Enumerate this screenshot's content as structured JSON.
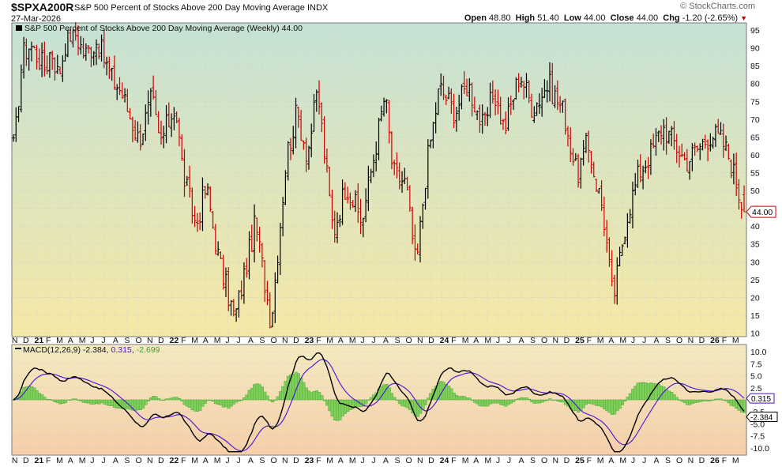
{
  "header": {
    "symbol": "$SPXA200R",
    "name": "S&P 500 Percent of Stocks Above 200 Day Moving Average",
    "exchange": "INDX",
    "date": "27-Mar-2026",
    "watermark": "© StockCharts.com",
    "open_label": "Open",
    "open": "48.80",
    "high_label": "High",
    "high": "51.40",
    "low_label": "Low",
    "low": "44.00",
    "close_label": "Close",
    "close": "44.00",
    "chg_label": "Chg",
    "chg": "-1.20 (-2.65%)",
    "chg_arrow": "▼"
  },
  "price_panel": {
    "legend": "S&P 500 Percent of Stocks Above 200 Day Moving Average (Weekly) 44.00",
    "last_value_tag": "44.00"
  },
  "macd_panel": {
    "legend_prefix": "MACD(12,26,9)",
    "macd_value": "-2.384",
    "signal_value": "0.315",
    "hist_value": "-2.699",
    "macd_tag": "-2.384",
    "signal_tag": "0.315"
  },
  "x_axis_labels": [
    "N",
    "D",
    "21",
    "F",
    "M",
    "A",
    "M",
    "J",
    "J",
    "A",
    "S",
    "O",
    "N",
    "D",
    "22",
    "F",
    "M",
    "A",
    "M",
    "J",
    "J",
    "A",
    "S",
    "O",
    "N",
    "D",
    "23",
    "F",
    "M",
    "A",
    "M",
    "J",
    "J",
    "A",
    "S",
    "O",
    "N",
    "D",
    "24",
    "F",
    "M",
    "A",
    "M",
    "J",
    "J",
    "A",
    "S",
    "O",
    "N",
    "D",
    "25",
    "F",
    "M",
    "A",
    "M",
    "J",
    "J",
    "A",
    "S",
    "O",
    "N",
    "D",
    "26",
    "F",
    "M"
  ],
  "colors": {
    "up_bar": "#000000",
    "down_bar": "#cc0000",
    "macd_line": "#000000",
    "signal_line": "#4b0fd6",
    "histogram": "#3f9f2f",
    "histogram_fill": "#7fcf5a",
    "price_bg_top": "#c5e2d5",
    "price_bg_bottom": "#f6e8a6",
    "macd_bg_top": "#f3eac0",
    "macd_bg_bottom": "#f5cfa9"
  },
  "chart_data": [
    {
      "type": "ohlc",
      "title": "S&P 500 Percent of Stocks Above 200 Day Moving Average (Weekly)",
      "ylim": [
        9,
        97
      ],
      "yticks": [
        10,
        15,
        20,
        25,
        30,
        35,
        40,
        45,
        50,
        55,
        60,
        65,
        70,
        75,
        80,
        85,
        90,
        95
      ],
      "xlim": [
        "2020-11",
        "2026-03"
      ],
      "anchors": [
        [
          "2020-11-02",
          62
        ],
        [
          "2020-11-09",
          72
        ],
        [
          "2020-11-23",
          88
        ],
        [
          "2020-12-14",
          91
        ],
        [
          "2021-01-25",
          84
        ],
        [
          "2021-02-08",
          90
        ],
        [
          "2021-03-01",
          82
        ],
        [
          "2021-03-22",
          93
        ],
        [
          "2021-04-12",
          95
        ],
        [
          "2021-05-10",
          88
        ],
        [
          "2021-06-14",
          92
        ],
        [
          "2021-07-19",
          82
        ],
        [
          "2021-08-16",
          78
        ],
        [
          "2021-10-04",
          64
        ],
        [
          "2021-11-08",
          76
        ],
        [
          "2021-11-29",
          63
        ],
        [
          "2022-01-10",
          74
        ],
        [
          "2022-01-31",
          55
        ],
        [
          "2022-03-07",
          40
        ],
        [
          "2022-04-04",
          51
        ],
        [
          "2022-05-09",
          30
        ],
        [
          "2022-06-20",
          14
        ],
        [
          "2022-08-15",
          41
        ],
        [
          "2022-09-26",
          13
        ],
        [
          "2022-11-07",
          60
        ],
        [
          "2022-12-05",
          72
        ],
        [
          "2023-01-02",
          60
        ],
        [
          "2023-01-30",
          78
        ],
        [
          "2023-03-13",
          38
        ],
        [
          "2023-04-17",
          52
        ],
        [
          "2023-05-29",
          41
        ],
        [
          "2023-07-31",
          77
        ],
        [
          "2023-08-21",
          55
        ],
        [
          "2023-09-25",
          52
        ],
        [
          "2023-10-23",
          28
        ],
        [
          "2023-11-20",
          57
        ],
        [
          "2023-12-25",
          79
        ],
        [
          "2024-02-05",
          72
        ],
        [
          "2024-03-11",
          80
        ],
        [
          "2024-04-22",
          67
        ],
        [
          "2024-05-20",
          78
        ],
        [
          "2024-06-17",
          67
        ],
        [
          "2024-07-29",
          83
        ],
        [
          "2024-09-02",
          73
        ],
        [
          "2024-10-14",
          80
        ],
        [
          "2024-11-25",
          72
        ],
        [
          "2024-12-30",
          54
        ],
        [
          "2025-01-27",
          63
        ],
        [
          "2025-03-10",
          45
        ],
        [
          "2025-04-07",
          19
        ],
        [
          "2025-05-12",
          42
        ],
        [
          "2025-06-16",
          55
        ],
        [
          "2025-07-21",
          61
        ],
        [
          "2025-08-18",
          68
        ],
        [
          "2025-09-22",
          63
        ],
        [
          "2025-10-20",
          58
        ],
        [
          "2025-11-24",
          62
        ],
        [
          "2025-12-29",
          66
        ],
        [
          "2026-01-26",
          64
        ],
        [
          "2026-02-16",
          59
        ],
        [
          "2026-03-09",
          51
        ],
        [
          "2026-03-27",
          44
        ]
      ],
      "last_bar": {
        "date": "2026-03-27",
        "open": 48.8,
        "high": 51.4,
        "low": 44.0,
        "close": 44.0
      }
    },
    {
      "type": "macd",
      "title": "MACD(12,26,9)",
      "ylim": [
        -11.5,
        11.5
      ],
      "yticks": [
        -10.0,
        -7.5,
        -5.0,
        -2.5,
        0.0,
        2.5,
        5.0,
        7.5,
        10.0
      ],
      "series": [
        {
          "name": "MACD",
          "last": -2.384
        },
        {
          "name": "Signal",
          "last": 0.315
        },
        {
          "name": "Histogram",
          "last": -2.699
        }
      ]
    }
  ]
}
